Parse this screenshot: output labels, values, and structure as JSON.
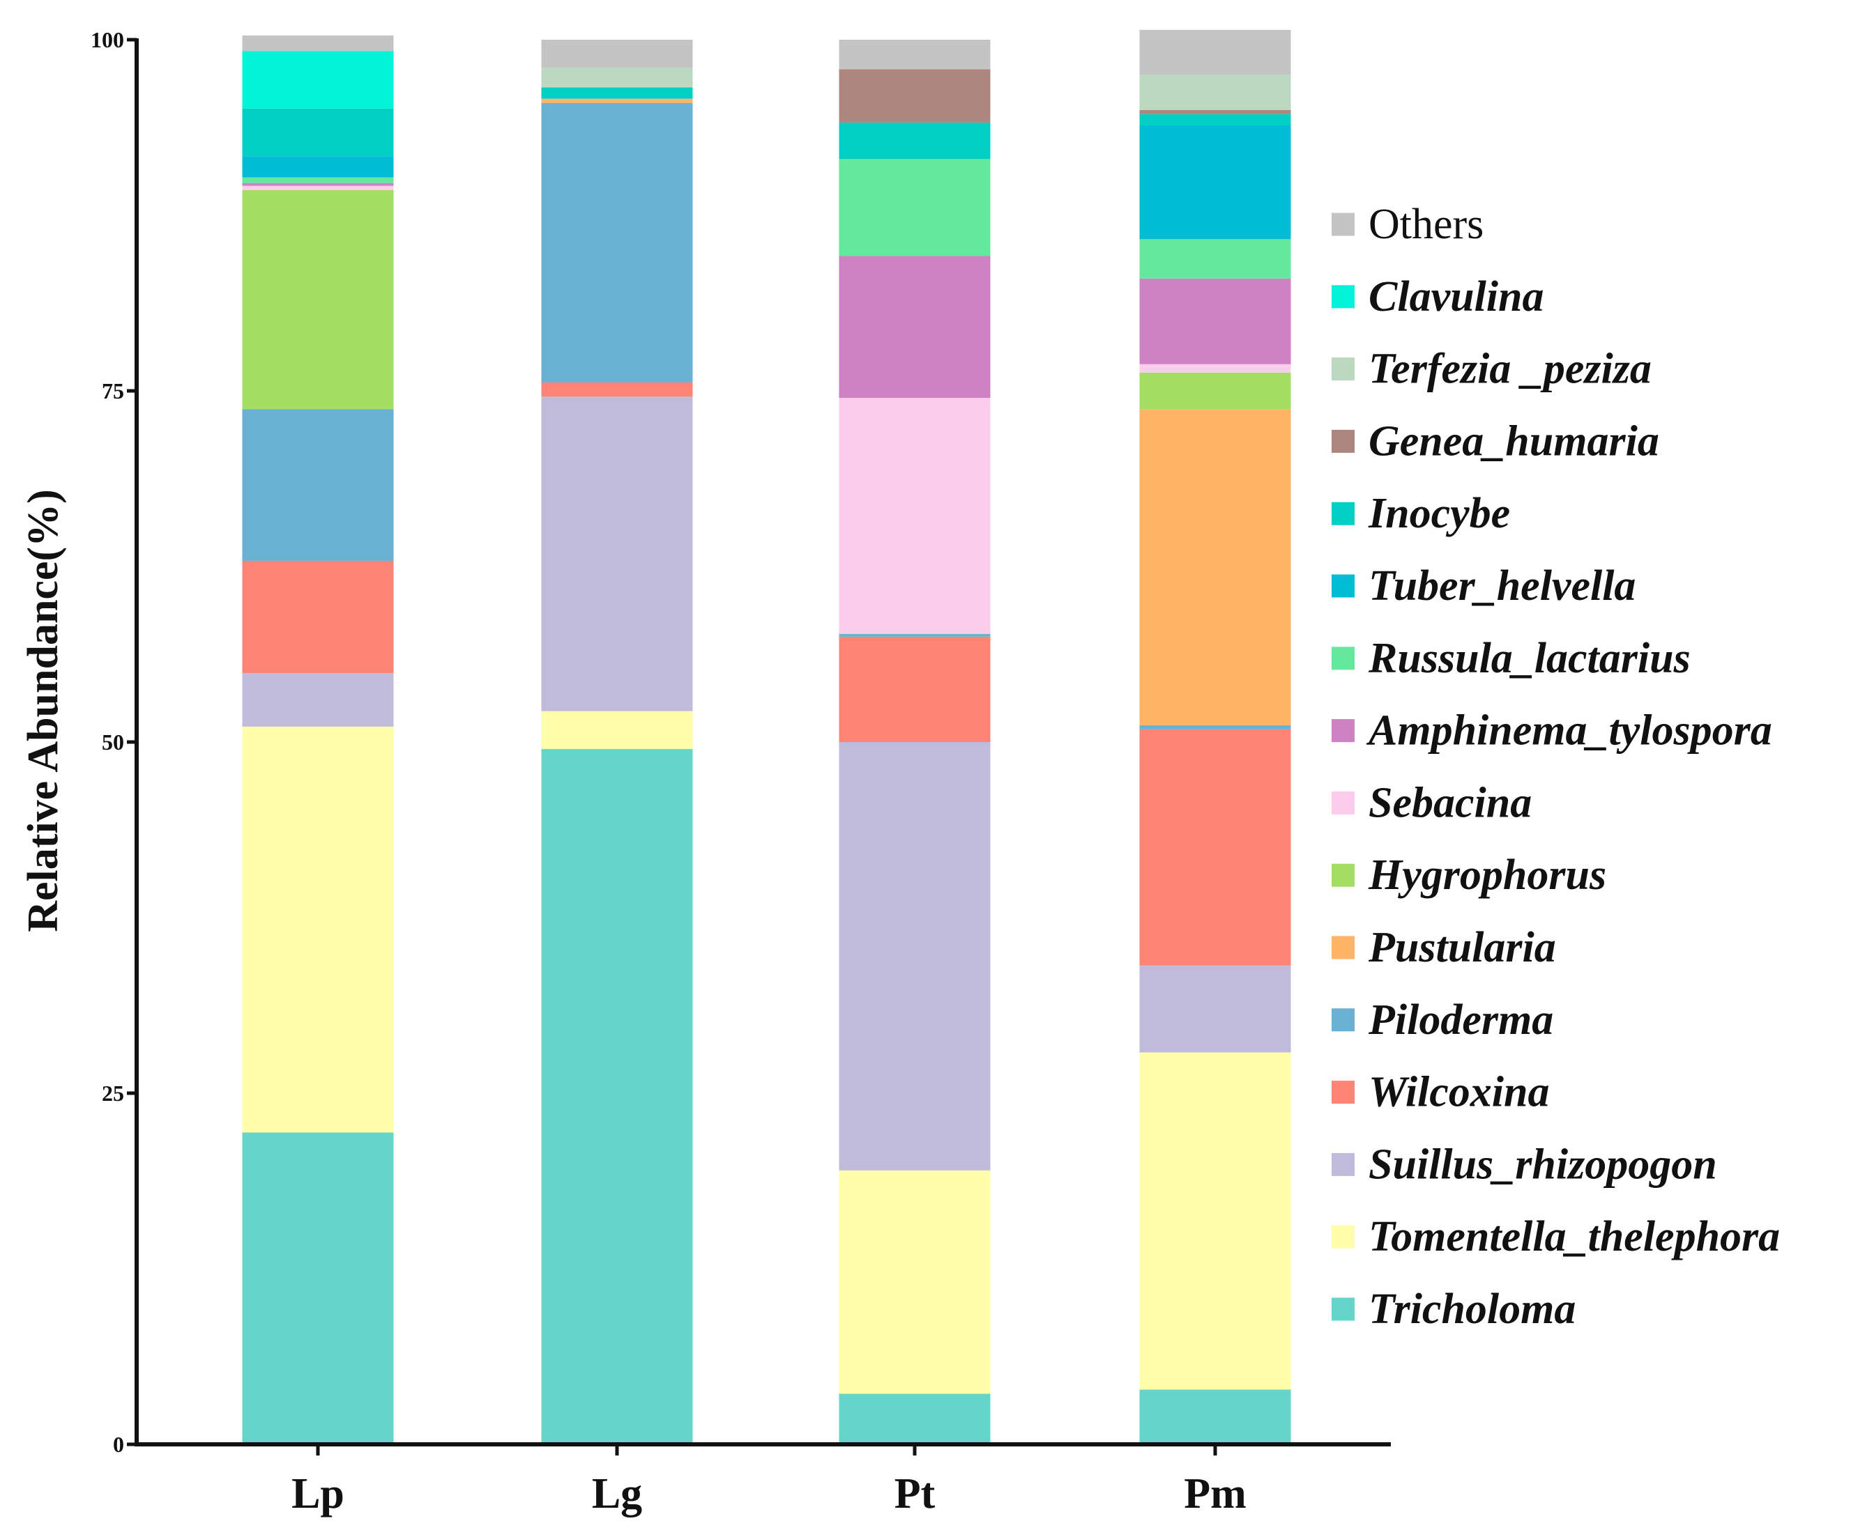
{
  "chart_data": {
    "type": "bar",
    "stacked": true,
    "title": "",
    "xlabel": "",
    "ylabel": "Relative Abundance(%)",
    "ylim": [
      0,
      100
    ],
    "yticks": [
      0,
      25,
      50,
      75,
      100
    ],
    "categories": [
      "Lp",
      "Lg",
      "Pt",
      "Pm"
    ],
    "legend_position": "right",
    "series": [
      {
        "name": "Tricholoma",
        "color": "#63d5c9",
        "values": [
          22.2,
          49.5,
          3.6,
          3.9
        ]
      },
      {
        "name": "Tomentella_thelephora",
        "color": "#fdfdaa",
        "values": [
          28.9,
          2.7,
          15.9,
          24.0
        ]
      },
      {
        "name": "Suillus_rhizopogon",
        "color": "#c1bbdb",
        "values": [
          3.8,
          22.4,
          30.5,
          6.2
        ]
      },
      {
        "name": "Wilcoxina",
        "color": "#fd8474",
        "values": [
          8.0,
          1.0,
          7.5,
          16.8
        ]
      },
      {
        "name": "Piloderma",
        "color": "#68b1d3",
        "values": [
          10.8,
          19.9,
          0.2,
          0.3
        ]
      },
      {
        "name": "Pustularia",
        "color": "#fdb464",
        "values": [
          0.0,
          0.3,
          0.0,
          22.5
        ]
      },
      {
        "name": "Hygrophorus",
        "color": "#a3de62",
        "values": [
          15.6,
          0.0,
          0.0,
          2.6
        ]
      },
      {
        "name": "Sebacina",
        "color": "#fcccec",
        "values": [
          0.3,
          0.0,
          16.8,
          0.6
        ]
      },
      {
        "name": "Amphinema_tylospora",
        "color": "#cf82c2",
        "values": [
          0.2,
          0.0,
          10.1,
          6.1
        ]
      },
      {
        "name": "Russula_lactarius",
        "color": "#63e89e",
        "values": [
          0.4,
          0.0,
          6.9,
          2.8
        ]
      },
      {
        "name": "Tuber_helvella",
        "color": "#00bcd4",
        "values": [
          1.5,
          0.0,
          0.0,
          8.1
        ]
      },
      {
        "name": "Inocybe",
        "color": "#02cfc3",
        "values": [
          3.4,
          0.8,
          2.6,
          0.8
        ]
      },
      {
        "name": "Genea_humaria",
        "color": "#ad8680",
        "values": [
          0.0,
          0.0,
          3.8,
          0.3
        ]
      },
      {
        "name": "Terfezia _peziza",
        "color": "#bcd9bf",
        "values": [
          0.0,
          1.4,
          0.0,
          2.5
        ]
      },
      {
        "name": "Clavulina",
        "color": "#01f4d8",
        "values": [
          4.1,
          0.0,
          0.0,
          0.0
        ]
      },
      {
        "name": "Others",
        "color": "#c4c4c4",
        "values": [
          1.1,
          2.0,
          2.1,
          3.2
        ]
      }
    ],
    "legend_order": [
      "Others",
      "Clavulina",
      "Terfezia _peziza",
      "Genea_humaria",
      "Inocybe",
      "Tuber_helvella",
      "Russula_lactarius",
      "Amphinema_tylospora",
      "Sebacina",
      "Hygrophorus",
      "Pustularia",
      "Piloderma",
      "Wilcoxina",
      "Suillus_rhizopogon",
      "Tomentella_thelephora",
      "Tricholoma"
    ]
  }
}
